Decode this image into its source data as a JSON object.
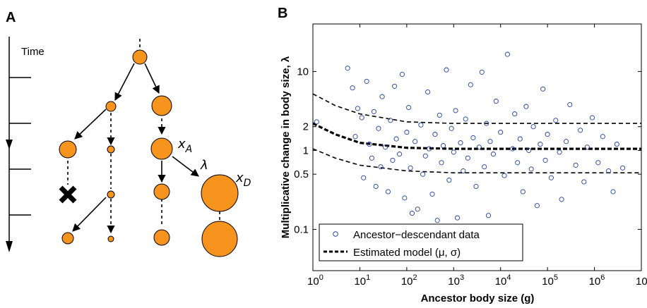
{
  "panels": {
    "a": "A",
    "b": "B"
  },
  "panel_a": {
    "time_label": "Time",
    "x_a_label": "x",
    "x_a_sub": "A",
    "x_d_label": "x",
    "x_d_sub": "D",
    "lambda_label": "λ"
  },
  "chart_data": {
    "type": "scatter",
    "title": "",
    "xlabel": "Ancestor body size (g)",
    "ylabel": "Multiplicative change in body size, λ",
    "xscale": "log",
    "yscale": "log",
    "xlim": [
      1,
      10000000
    ],
    "ylim": [
      0.03,
      40
    ],
    "x_ticks": [
      {
        "base": "10",
        "exp": "0",
        "value": 1
      },
      {
        "base": "10",
        "exp": "1",
        "value": 10
      },
      {
        "base": "10",
        "exp": "2",
        "value": 100
      },
      {
        "base": "10",
        "exp": "3",
        "value": 1000
      },
      {
        "base": "10",
        "exp": "4",
        "value": 10000
      },
      {
        "base": "10",
        "exp": "5",
        "value": 100000
      },
      {
        "base": "10",
        "exp": "6",
        "value": 1000000
      },
      {
        "base": "10",
        "exp": "7",
        "value": 10000000
      }
    ],
    "y_ticks": [
      {
        "label": "10",
        "value": 10
      },
      {
        "label": "2",
        "value": 2
      },
      {
        "label": "1",
        "value": 1
      },
      {
        "label": "0.5",
        "value": 0.5
      },
      {
        "label": "0.1",
        "value": 0.1
      }
    ],
    "legend": {
      "placement": "bottom-left",
      "entries": [
        {
          "label": "Ancestor−descendant data",
          "style": "open-circle"
        },
        {
          "label": "Estimated model (μ, σ)",
          "style": "dashed-line"
        }
      ]
    },
    "colors": {
      "points": "#1f3fa6",
      "model": "#000000",
      "nodes": "#f7941d"
    },
    "model_lines": [
      {
        "name": "upper",
        "x": [
          1,
          3,
          10,
          100,
          1000,
          10000,
          100000,
          1000000,
          10000000
        ],
        "y": [
          5.2,
          3.7,
          2.9,
          2.3,
          2.2,
          2.2,
          2.2,
          2.2,
          2.2
        ]
      },
      {
        "name": "mean",
        "x": [
          1,
          3,
          10,
          100,
          1000,
          10000,
          100000,
          1000000,
          10000000
        ],
        "y": [
          2.2,
          1.6,
          1.25,
          1.08,
          1.05,
          1.05,
          1.05,
          1.05,
          1.05
        ]
      },
      {
        "name": "lower",
        "x": [
          1,
          3,
          10,
          100,
          1000,
          10000,
          100000,
          1000000,
          10000000
        ],
        "y": [
          1.05,
          0.8,
          0.65,
          0.55,
          0.52,
          0.52,
          0.52,
          0.52,
          0.52
        ]
      }
    ],
    "points": [
      [
        1.2,
        2.3
      ],
      [
        5.5,
        11
      ],
      [
        7,
        6.2
      ],
      [
        8,
        1.5
      ],
      [
        9,
        3.4
      ],
      [
        11,
        2.6
      ],
      [
        12,
        0.45
      ],
      [
        14,
        7.5
      ],
      [
        16,
        1.2
      ],
      [
        18,
        0.8
      ],
      [
        20,
        3.1
      ],
      [
        22,
        0.35
      ],
      [
        25,
        1.9
      ],
      [
        28,
        0.62
      ],
      [
        30,
        4.8
      ],
      [
        35,
        1.1
      ],
      [
        40,
        0.3
      ],
      [
        45,
        2.4
      ],
      [
        50,
        0.75
      ],
      [
        55,
        6.5
      ],
      [
        60,
        1.4
      ],
      [
        70,
        0.9
      ],
      [
        80,
        9.2
      ],
      [
        90,
        0.25
      ],
      [
        100,
        1.7
      ],
      [
        110,
        3.5
      ],
      [
        120,
        0.6
      ],
      [
        130,
        0.16
      ],
      [
        150,
        1.3
      ],
      [
        170,
        0.18
      ],
      [
        200,
        2.1
      ],
      [
        220,
        0.5
      ],
      [
        250,
        0.85
      ],
      [
        280,
        5.5
      ],
      [
        300,
        1.05
      ],
      [
        350,
        0.28
      ],
      [
        400,
        1.6
      ],
      [
        450,
        0.13
      ],
      [
        500,
        2.8
      ],
      [
        550,
        0.7
      ],
      [
        600,
        1.15
      ],
      [
        700,
        10.5
      ],
      [
        800,
        0.42
      ],
      [
        900,
        1.9
      ],
      [
        1000,
        0.95
      ],
      [
        1100,
        3.2
      ],
      [
        1200,
        0.14
      ],
      [
        1400,
        1.25
      ],
      [
        1600,
        0.55
      ],
      [
        1800,
        2.5
      ],
      [
        2000,
        0.8
      ],
      [
        2300,
        6.8
      ],
      [
        2600,
        1.45
      ],
      [
        3000,
        0.35
      ],
      [
        3500,
        1.1
      ],
      [
        4000,
        9.8
      ],
      [
        4500,
        0.62
      ],
      [
        5000,
        2.2
      ],
      [
        5500,
        0.15
      ],
      [
        6000,
        1.3
      ],
      [
        7000,
        0.9
      ],
      [
        8000,
        4.2
      ],
      [
        9000,
        0.1
      ],
      [
        10000,
        1.7
      ],
      [
        12000,
        0.48
      ],
      [
        14000,
        16.5
      ],
      [
        16000,
        0.1
      ],
      [
        18000,
        1.05
      ],
      [
        20000,
        2.9
      ],
      [
        23000,
        0.7
      ],
      [
        26000,
        1.4
      ],
      [
        30000,
        0.3
      ],
      [
        35000,
        3.6
      ],
      [
        40000,
        1.0
      ],
      [
        45000,
        0.58
      ],
      [
        50000,
        2.0
      ],
      [
        60000,
        0.2
      ],
      [
        70000,
        1.2
      ],
      [
        80000,
        6.0
      ],
      [
        90000,
        0.75
      ],
      [
        100000,
        1.6
      ],
      [
        120000,
        0.45
      ],
      [
        150000,
        2.4
      ],
      [
        180000,
        0.95
      ],
      [
        200000,
        0.24
      ],
      [
        250000,
        1.3
      ],
      [
        300000,
        3.8
      ],
      [
        400000,
        0.65
      ],
      [
        500000,
        1.8
      ],
      [
        600000,
        0.4
      ],
      [
        700000,
        1.1
      ],
      [
        900000,
        2.6
      ],
      [
        1200000,
        0.7
      ],
      [
        1500000,
        1.5
      ],
      [
        2000000,
        0.55
      ],
      [
        2500000,
        0.3
      ],
      [
        3000000,
        1.2
      ],
      [
        4000000,
        0.6
      ]
    ]
  }
}
